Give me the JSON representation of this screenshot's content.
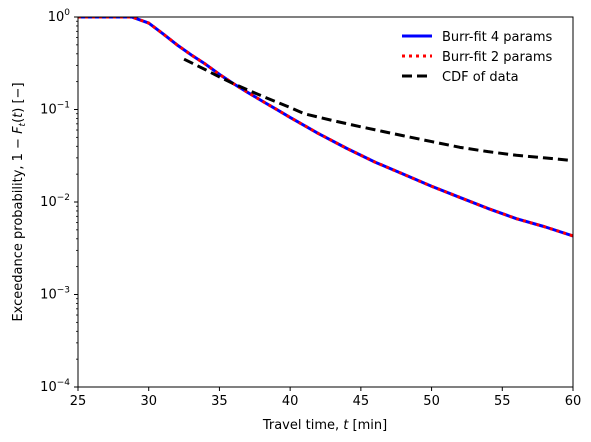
{
  "chart_data": {
    "type": "line",
    "xlabel": "Travel time, t [min]",
    "ylabel": "Exceedance probability, 1 − F_t(t)  [−]",
    "xlim": [
      25,
      60
    ],
    "ylim": [
      0.0001,
      1
    ],
    "yscale": "log",
    "grid": false,
    "legend_position": "top-right",
    "x_ticks": [
      25,
      30,
      35,
      40,
      45,
      50,
      55,
      60
    ],
    "x_tick_labels": [
      "25",
      "30",
      "35",
      "40",
      "45",
      "50",
      "55",
      "60"
    ],
    "y_ticks": [
      0.0001,
      0.001,
      0.01,
      0.1,
      1
    ],
    "y_tick_labels": [
      {
        "base": "10",
        "exp": "−4"
      },
      {
        "base": "10",
        "exp": "−3"
      },
      {
        "base": "10",
        "exp": "−2"
      },
      {
        "base": "10",
        "exp": "−1"
      },
      {
        "base": "10",
        "exp": "0"
      }
    ],
    "series": [
      {
        "name": "Burr-fit 4 params",
        "color": "#0000ff",
        "style": "solid",
        "x": [
          25,
          28.8,
          30,
          31,
          32,
          33,
          34,
          35,
          36,
          37,
          38,
          39,
          40,
          42,
          44,
          46,
          48,
          50,
          52,
          54,
          56,
          58,
          60
        ],
        "y": [
          1,
          1,
          0.86,
          0.66,
          0.5,
          0.39,
          0.31,
          0.24,
          0.19,
          0.153,
          0.124,
          0.101,
          0.082,
          0.055,
          0.038,
          0.027,
          0.02,
          0.0148,
          0.0112,
          0.0085,
          0.0066,
          0.0054,
          0.0043
        ]
      },
      {
        "name": "Burr-fit 2 params",
        "color": "#ff0000",
        "style": "dotted",
        "x": [
          25,
          28.8,
          30,
          31,
          32,
          33,
          34,
          35,
          36,
          37,
          38,
          39,
          40,
          42,
          44,
          46,
          48,
          50,
          52,
          54,
          56,
          58,
          60
        ],
        "y": [
          1,
          1,
          0.86,
          0.66,
          0.5,
          0.39,
          0.31,
          0.24,
          0.19,
          0.153,
          0.124,
          0.101,
          0.082,
          0.055,
          0.038,
          0.027,
          0.02,
          0.0148,
          0.0112,
          0.0085,
          0.0066,
          0.0054,
          0.0043
        ]
      },
      {
        "name": "CDF of data",
        "color": "#000000",
        "style": "dashed",
        "x": [
          32.5,
          34,
          35,
          36,
          38,
          40,
          41,
          43,
          45,
          48,
          50,
          52,
          54,
          56,
          58,
          60
        ],
        "y": [
          0.35,
          0.27,
          0.225,
          0.19,
          0.14,
          0.105,
          0.09,
          0.076,
          0.065,
          0.052,
          0.045,
          0.039,
          0.035,
          0.032,
          0.03,
          0.028
        ]
      }
    ]
  }
}
